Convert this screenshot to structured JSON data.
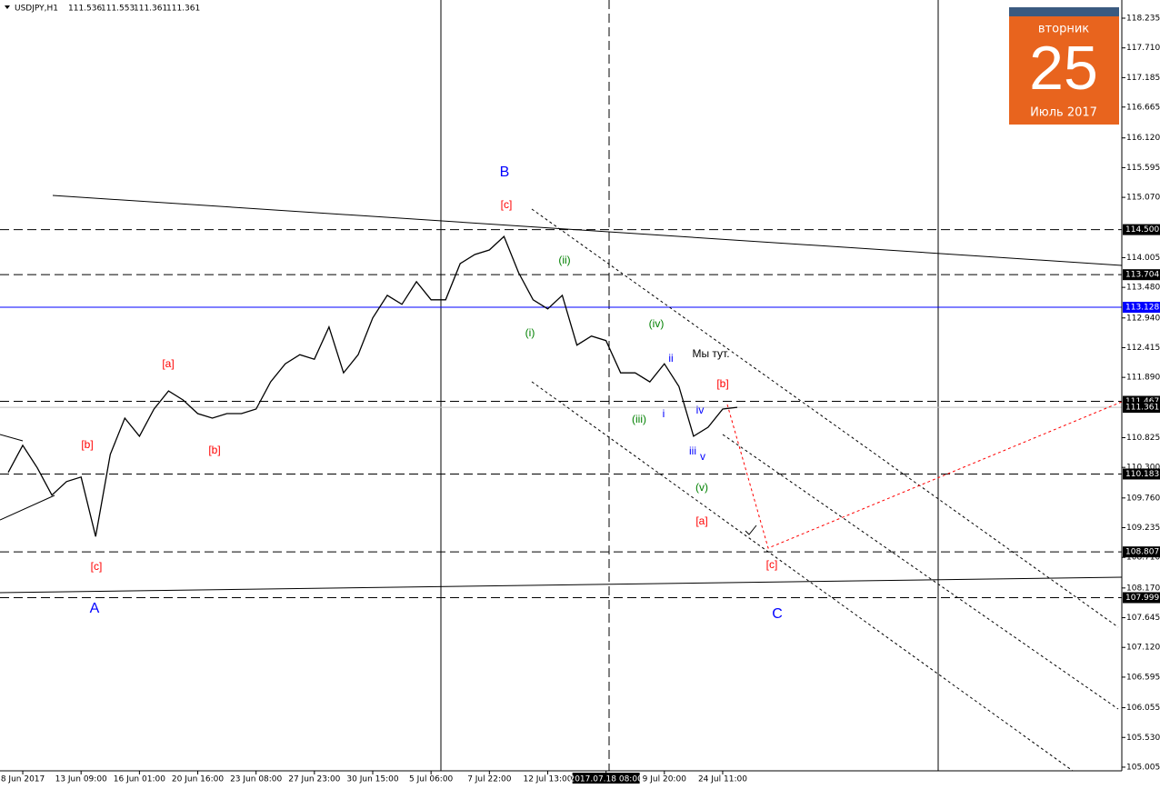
{
  "chart_data": {
    "type": "line",
    "title": "USDJPY,H1",
    "ohlc": [
      111.536,
      111.553,
      111.361,
      111.361
    ],
    "categories": [
      null,
      "8 Jun 2017",
      null,
      null,
      null,
      "13 Jun 09:00",
      null,
      null,
      null,
      "16 Jun 01:00",
      null,
      null,
      null,
      "20 Jun 16:00",
      null,
      null,
      null,
      "23 Jun 08:00",
      null,
      null,
      null,
      "27 Jun 23:00",
      null,
      null,
      null,
      "30 Jun 15:00",
      null,
      null,
      null,
      "5 Jul 06:00",
      null,
      null,
      null,
      "7 Jul 22:00",
      null,
      null,
      null,
      "12 Jul 13:00",
      null,
      null,
      null,
      "2017.07.18 08:00",
      null,
      null,
      null,
      "9 Jul 20:00",
      null,
      null,
      null,
      "24 Jul 11:00",
      null
    ],
    "values": [
      110.21,
      110.69,
      110.29,
      109.81,
      110.05,
      110.13,
      109.08,
      110.53,
      111.17,
      110.85,
      111.33,
      111.65,
      111.49,
      111.25,
      111.17,
      111.25,
      111.25,
      111.33,
      111.81,
      112.13,
      112.29,
      112.21,
      112.78,
      111.97,
      112.29,
      112.94,
      113.34,
      113.18,
      113.58,
      113.26,
      113.26,
      113.9,
      114.06,
      114.14,
      114.38,
      113.74,
      113.26,
      113.1,
      113.34,
      112.46,
      112.62,
      112.54,
      111.97,
      111.97,
      111.81,
      112.13,
      111.73,
      110.85,
      111.01,
      111.33,
      111.361
    ],
    "color": "#000000",
    "ylim": [
      104.94,
      118.556
    ],
    "yticks": [
      118.235,
      {
        "value": 117.71,
        "label": "117.710"
      },
      117.185,
      116.665,
      {
        "value": 116.12,
        "label": "116.120"
      },
      115.595,
      {
        "value": 115.07,
        "label": "115.070"
      },
      114.005,
      {
        "value": 113.48,
        "label": "113.480"
      },
      {
        "value": 112.94,
        "label": "112.940"
      },
      112.415,
      {
        "value": 111.89,
        "label": "111.890"
      },
      110.825,
      {
        "value": 110.3,
        "label": "110.300"
      },
      {
        "value": 109.76,
        "label": "109.760"
      },
      109.235,
      {
        "value": 108.71,
        "label": "108.710"
      },
      {
        "value": 108.17,
        "label": "108.170"
      },
      107.645,
      {
        "value": 107.12,
        "label": "107.120"
      },
      106.595,
      106.055,
      {
        "value": 105.53,
        "label": "105.530"
      },
      105.005
    ],
    "levels": [
      {
        "value": 114.5,
        "label": "114.500",
        "style": "dashed",
        "color": "#000000"
      },
      {
        "value": 113.704,
        "label": "113.704",
        "style": "dashed",
        "color": "#000000"
      },
      {
        "value": 113.128,
        "label": "113.128",
        "style": "solid",
        "color": "#0000ff"
      },
      {
        "value": 111.467,
        "label": "111.467",
        "style": "dashed",
        "color": "#000000"
      },
      {
        "value": 111.361,
        "label": "111.361",
        "style": "solid",
        "color": "#c0c0c0"
      },
      {
        "value": 110.183,
        "label": "110.183",
        "style": "dashed",
        "color": "#000000"
      },
      {
        "value": 108.807,
        "label": "108.807",
        "style": "dashed",
        "color": "#000000"
      },
      {
        "value": 107.999,
        "label": "107.999",
        "style": "dashed",
        "color": "#000000"
      }
    ],
    "annotations": [
      {
        "text": "B",
        "color": "#0000ff"
      },
      {
        "text": "[c]",
        "color": "#ff0000"
      },
      {
        "text": "(ii)",
        "color": "#008000"
      },
      {
        "text": "(i)",
        "color": "#008000"
      },
      {
        "text": "(iv)",
        "color": "#008000"
      },
      {
        "text": "ii",
        "color": "#0000ff"
      },
      {
        "text": "Мы тут.",
        "color": "#000000"
      },
      {
        "text": "[b]",
        "color": "#ff0000"
      },
      {
        "text": "i",
        "color": "#0000ff"
      },
      {
        "text": "iv",
        "color": "#0000ff"
      },
      {
        "text": "(iii)",
        "color": "#008000"
      },
      {
        "text": "iii",
        "color": "#0000ff"
      },
      {
        "text": "v",
        "color": "#0000ff"
      },
      {
        "text": "(v)",
        "color": "#008000"
      },
      {
        "text": "[a]",
        "color": "#ff0000"
      },
      {
        "text": "[c]",
        "color": "#ff0000"
      },
      {
        "text": "C",
        "color": "#0000ff"
      },
      {
        "text": "[a]",
        "color": "#ff0000"
      },
      {
        "text": "[b]",
        "color": "#ff0000"
      },
      {
        "text": "[b]",
        "color": "#ff0000"
      },
      {
        "text": "[c]",
        "color": "#ff0000"
      },
      {
        "text": "A",
        "color": "#0000ff"
      }
    ]
  },
  "calendar": {
    "weekday": "вторник",
    "day": "25",
    "month": "Июль 2017"
  }
}
